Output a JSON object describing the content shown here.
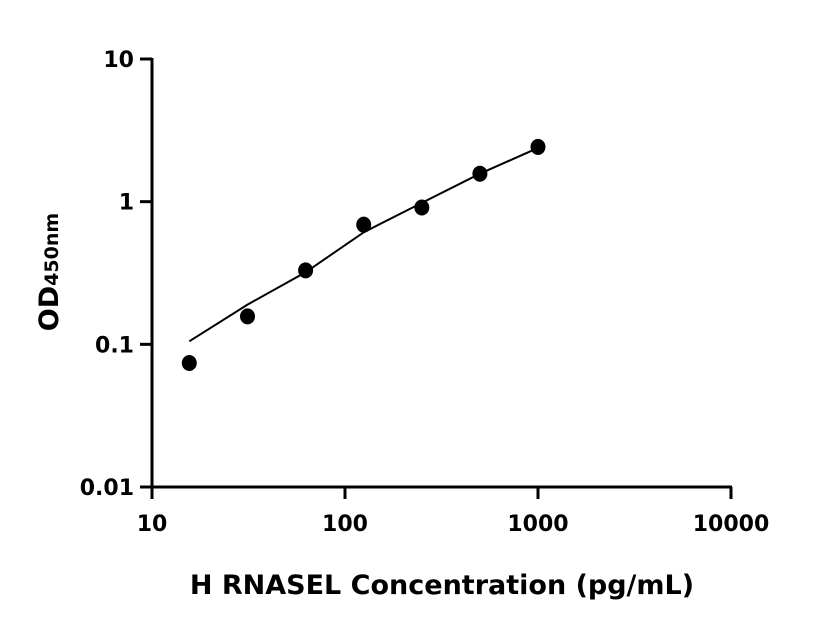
{
  "chart_data": {
    "type": "scatter",
    "title": "",
    "xlabel": "H RNASEL Concentration (pg/mL)",
    "ylabel_main": "OD",
    "ylabel_sub": "450nm",
    "x_scale": "log",
    "y_scale": "log",
    "xlim": [
      10,
      10000
    ],
    "ylim": [
      0.01,
      10
    ],
    "x_ticks": [
      10,
      100,
      1000,
      10000
    ],
    "x_tick_labels": [
      "10",
      "100",
      "1000",
      "10000"
    ],
    "y_ticks": [
      0.01,
      0.1,
      1,
      10
    ],
    "y_tick_labels": [
      "0.01",
      "0.1",
      "1",
      "10"
    ],
    "grid": false,
    "legend": "none",
    "color": "#000000",
    "points": {
      "x": [
        15.6,
        31.25,
        62.5,
        125,
        250,
        500,
        1000
      ],
      "y": [
        0.074,
        0.157,
        0.33,
        0.69,
        0.91,
        1.57,
        2.42
      ]
    },
    "fit_curve": {
      "x": [
        15.6,
        31.25,
        62.5,
        125,
        250,
        500,
        1000
      ],
      "y": [
        0.105,
        0.19,
        0.32,
        0.61,
        0.98,
        1.57,
        2.38
      ]
    }
  }
}
